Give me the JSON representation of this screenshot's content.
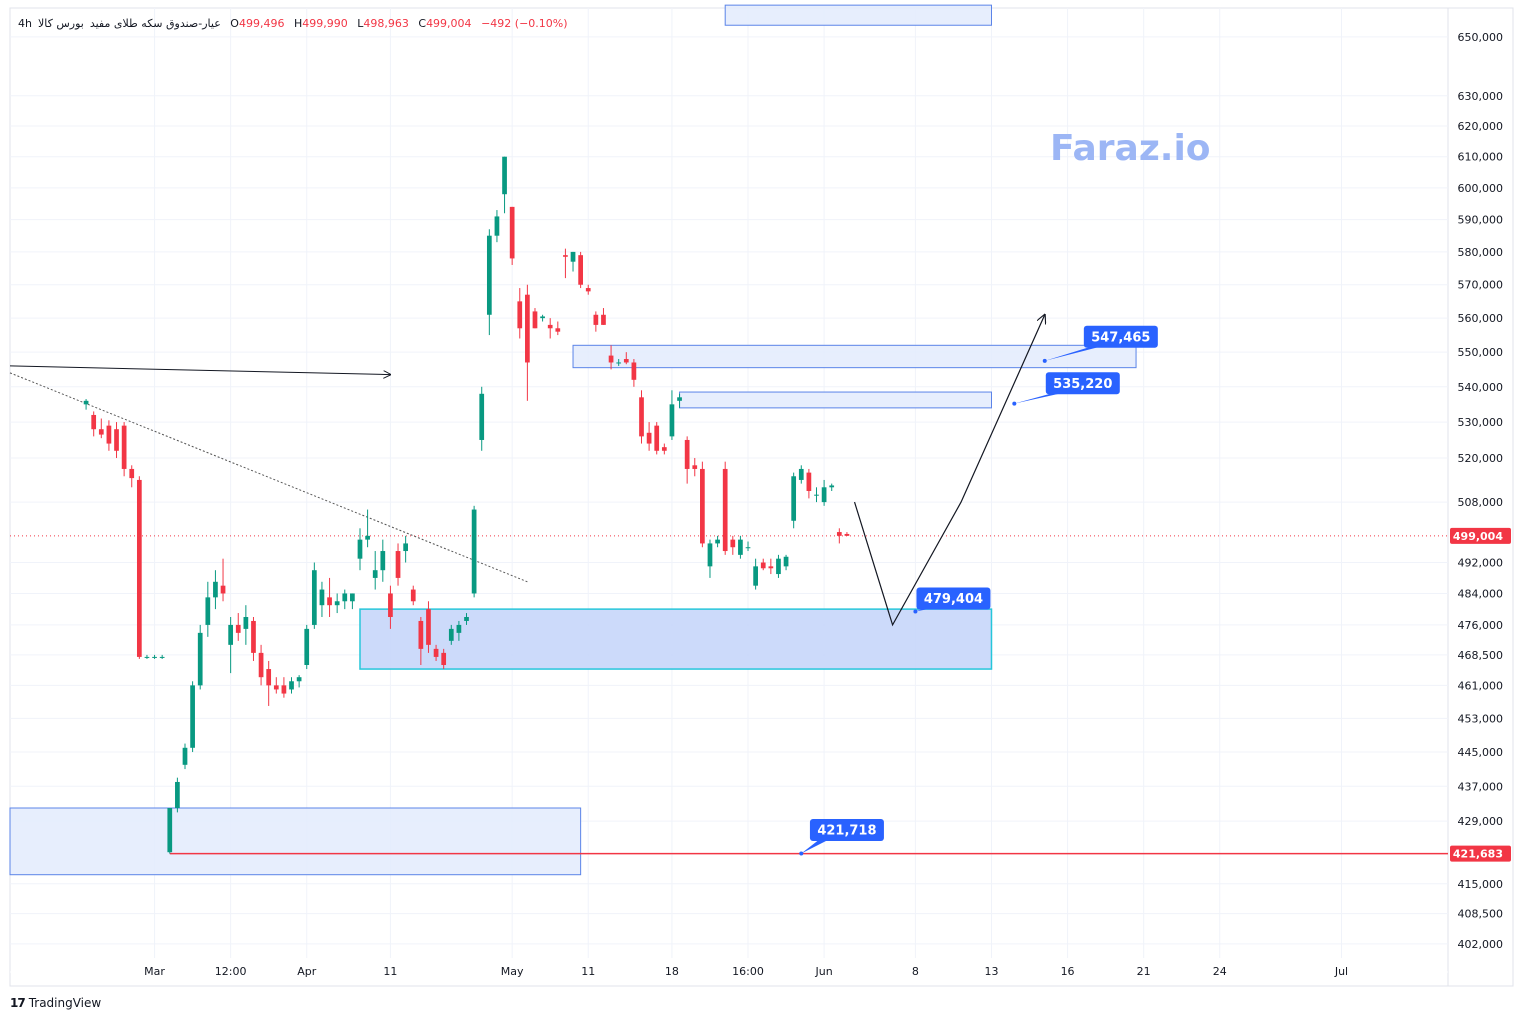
{
  "legend": {
    "symbol": "عیار-صندوق سکه طلای مفید",
    "interval": "4h",
    "exchange": "بورس کالا",
    "open_label": "O",
    "open": "499,496",
    "high_label": "H",
    "high": "499,990",
    "low_label": "L",
    "low": "498,963",
    "close_label": "C",
    "close": "499,004",
    "change": "−492 (−0.10%)"
  },
  "watermark": "Faraz.io",
  "brand": {
    "name": "TradingView",
    "logo": "17"
  },
  "colors": {
    "up": "#089981",
    "down": "#f23645",
    "zone_fill": "#c9d8fb",
    "zone_stroke": "#2962ff",
    "label": "#2962ff",
    "price_line": "#f23645"
  },
  "chart_data": {
    "type": "candlestick",
    "y_axis": {
      "ticks": [
        650000,
        630000,
        620000,
        610000,
        600000,
        590000,
        580000,
        570000,
        560000,
        550000,
        540000,
        530000,
        520000,
        508000,
        492000,
        484000,
        476000,
        468500,
        461000,
        453000,
        445000,
        437000,
        429000,
        415000,
        408500,
        402000
      ],
      "tick_labels": [
        "650,000",
        "630,000",
        "620,000",
        "610,000",
        "600,000",
        "590,000",
        "580,000",
        "570,000",
        "560,000",
        "550,000",
        "540,000",
        "530,000",
        "520,000",
        "508,000",
        "492,000",
        "484,000",
        "476,000",
        "468,500",
        "461,000",
        "453,000",
        "445,000",
        "437,000",
        "429,000",
        "415,000",
        "408,500",
        "402,000"
      ],
      "scale": "log",
      "range": [
        399000,
        660000
      ]
    },
    "x_axis": {
      "labels": [
        "Mar",
        "12:00",
        "Apr",
        "11",
        "May",
        "11",
        "18",
        "16:00",
        "Jun",
        "8",
        "13",
        "16",
        "21",
        "24",
        "Jul"
      ],
      "label_candle_index": [
        9,
        19,
        29,
        40,
        56,
        66,
        77,
        87,
        97,
        109,
        119,
        129,
        139,
        149,
        165
      ],
      "range_candle_index": [
        -10,
        179
      ]
    },
    "last_price": {
      "value": 499004,
      "label": "499,004"
    },
    "support_line": {
      "value": 421683,
      "label": "421,683",
      "from_index": 11
    },
    "candles": [
      {
        "i": 0,
        "o": 535000,
        "h": 536500,
        "l": 533500,
        "c": 536000
      },
      {
        "i": 1,
        "o": 532000,
        "h": 533000,
        "l": 526000,
        "c": 528000
      },
      {
        "i": 2,
        "o": 528000,
        "h": 531000,
        "l": 525500,
        "c": 526500
      },
      {
        "i": 3,
        "o": 529000,
        "h": 530500,
        "l": 522000,
        "c": 524000
      },
      {
        "i": 4,
        "o": 528000,
        "h": 530000,
        "l": 520000,
        "c": 522000
      },
      {
        "i": 5,
        "o": 529000,
        "h": 530000,
        "l": 515000,
        "c": 517000
      },
      {
        "i": 6,
        "o": 517000,
        "h": 518000,
        "l": 512000,
        "c": 514500
      },
      {
        "i": 7,
        "o": 514000,
        "h": 515000,
        "l": 467500,
        "c": 468000
      },
      {
        "i": 8,
        "o": 468000,
        "h": 468500,
        "l": 467500,
        "c": 468000
      },
      {
        "i": 9,
        "o": 468000,
        "h": 468500,
        "l": 467500,
        "c": 468000
      },
      {
        "i": 10,
        "o": 468000,
        "h": 468500,
        "l": 467500,
        "c": 468000
      },
      {
        "i": 11,
        "o": 422000,
        "h": 432000,
        "l": 421683,
        "c": 432000
      },
      {
        "i": 12,
        "o": 432000,
        "h": 439000,
        "l": 431000,
        "c": 438000
      },
      {
        "i": 13,
        "o": 442000,
        "h": 447000,
        "l": 441000,
        "c": 446000
      },
      {
        "i": 14,
        "o": 446000,
        "h": 462000,
        "l": 445000,
        "c": 461000
      },
      {
        "i": 15,
        "o": 461000,
        "h": 476000,
        "l": 460000,
        "c": 474000
      },
      {
        "i": 16,
        "o": 476000,
        "h": 487000,
        "l": 473000,
        "c": 483000
      },
      {
        "i": 17,
        "o": 483000,
        "h": 490000,
        "l": 480000,
        "c": 487000
      },
      {
        "i": 18,
        "o": 486000,
        "h": 493000,
        "l": 482000,
        "c": 484000
      },
      {
        "i": 19,
        "o": 471000,
        "h": 478000,
        "l": 464000,
        "c": 476000
      },
      {
        "i": 20,
        "o": 476000,
        "h": 479000,
        "l": 472000,
        "c": 474000
      },
      {
        "i": 21,
        "o": 475000,
        "h": 481000,
        "l": 471000,
        "c": 478000
      },
      {
        "i": 22,
        "o": 477000,
        "h": 478000,
        "l": 467000,
        "c": 469000
      },
      {
        "i": 23,
        "o": 469000,
        "h": 471000,
        "l": 461000,
        "c": 463000
      },
      {
        "i": 24,
        "o": 465000,
        "h": 467000,
        "l": 456000,
        "c": 461000
      },
      {
        "i": 25,
        "o": 461000,
        "h": 463000,
        "l": 459000,
        "c": 460000
      },
      {
        "i": 26,
        "o": 461000,
        "h": 463000,
        "l": 458000,
        "c": 459000
      },
      {
        "i": 27,
        "o": 460000,
        "h": 463000,
        "l": 459000,
        "c": 462000
      },
      {
        "i": 28,
        "o": 462000,
        "h": 463500,
        "l": 460500,
        "c": 463000
      },
      {
        "i": 29,
        "o": 466000,
        "h": 476000,
        "l": 465000,
        "c": 475000
      },
      {
        "i": 30,
        "o": 476000,
        "h": 492000,
        "l": 475000,
        "c": 490000
      },
      {
        "i": 31,
        "o": 481000,
        "h": 487000,
        "l": 478000,
        "c": 485000
      },
      {
        "i": 32,
        "o": 483000,
        "h": 488000,
        "l": 478000,
        "c": 481000
      },
      {
        "i": 33,
        "o": 481000,
        "h": 484000,
        "l": 479000,
        "c": 482000
      },
      {
        "i": 34,
        "o": 482000,
        "h": 485000,
        "l": 480000,
        "c": 484000
      },
      {
        "i": 35,
        "o": 482000,
        "h": 484000,
        "l": 480000,
        "c": 484000
      },
      {
        "i": 36,
        "o": 493000,
        "h": 501000,
        "l": 490000,
        "c": 498000
      },
      {
        "i": 37,
        "o": 498000,
        "h": 506000,
        "l": 496000,
        "c": 499000
      },
      {
        "i": 38,
        "o": 488000,
        "h": 495000,
        "l": 485000,
        "c": 490000
      },
      {
        "i": 39,
        "o": 490000,
        "h": 498000,
        "l": 487000,
        "c": 495000
      },
      {
        "i": 40,
        "o": 484000,
        "h": 486000,
        "l": 475000,
        "c": 478000
      },
      {
        "i": 41,
        "o": 495000,
        "h": 497000,
        "l": 486000,
        "c": 488000
      },
      {
        "i": 42,
        "o": 495000,
        "h": 499000,
        "l": 492000,
        "c": 497000
      },
      {
        "i": 43,
        "o": 485000,
        "h": 486000,
        "l": 481000,
        "c": 482000
      },
      {
        "i": 44,
        "o": 477000,
        "h": 478000,
        "l": 466000,
        "c": 470000
      },
      {
        "i": 45,
        "o": 480000,
        "h": 482000,
        "l": 469000,
        "c": 471000
      },
      {
        "i": 46,
        "o": 470000,
        "h": 471000,
        "l": 467000,
        "c": 468000
      },
      {
        "i": 47,
        "o": 469000,
        "h": 470000,
        "l": 465000,
        "c": 466000
      },
      {
        "i": 48,
        "o": 472000,
        "h": 476000,
        "l": 471000,
        "c": 475000
      },
      {
        "i": 49,
        "o": 474000,
        "h": 477000,
        "l": 472000,
        "c": 476000
      },
      {
        "i": 50,
        "o": 477000,
        "h": 479000,
        "l": 476000,
        "c": 478000
      },
      {
        "i": 51,
        "o": 484000,
        "h": 507000,
        "l": 483000,
        "c": 506000
      },
      {
        "i": 52,
        "o": 525000,
        "h": 540000,
        "l": 522000,
        "c": 538000
      },
      {
        "i": 53,
        "o": 561000,
        "h": 587000,
        "l": 555000,
        "c": 585000
      },
      {
        "i": 54,
        "o": 585000,
        "h": 593000,
        "l": 583000,
        "c": 591000
      },
      {
        "i": 55,
        "o": 598000,
        "h": 610000,
        "l": 592000,
        "c": 610000
      },
      {
        "i": 56,
        "o": 594000,
        "h": 594000,
        "l": 576000,
        "c": 578000
      },
      {
        "i": 57,
        "o": 565000,
        "h": 569000,
        "l": 554000,
        "c": 557000
      },
      {
        "i": 58,
        "o": 567000,
        "h": 570000,
        "l": 536000,
        "c": 547000
      },
      {
        "i": 59,
        "o": 562000,
        "h": 563000,
        "l": 557000,
        "c": 557000
      },
      {
        "i": 60,
        "o": 560000,
        "h": 561000,
        "l": 559000,
        "c": 560500
      },
      {
        "i": 61,
        "o": 558000,
        "h": 560000,
        "l": 554000,
        "c": 557000
      },
      {
        "i": 62,
        "o": 557000,
        "h": 559000,
        "l": 555000,
        "c": 556000
      },
      {
        "i": 63,
        "o": 579000,
        "h": 581000,
        "l": 572000,
        "c": 578500
      },
      {
        "i": 64,
        "o": 577000,
        "h": 580000,
        "l": 574000,
        "c": 580000
      },
      {
        "i": 65,
        "o": 579000,
        "h": 580000,
        "l": 569000,
        "c": 570000
      },
      {
        "i": 66,
        "o": 569000,
        "h": 570000,
        "l": 567000,
        "c": 568000
      },
      {
        "i": 67,
        "o": 561000,
        "h": 562000,
        "l": 556000,
        "c": 558000
      },
      {
        "i": 68,
        "o": 561000,
        "h": 563000,
        "l": 558000,
        "c": 558000
      },
      {
        "i": 69,
        "o": 549000,
        "h": 552000,
        "l": 545000,
        "c": 547000
      },
      {
        "i": 70,
        "o": 547000,
        "h": 548000,
        "l": 546000,
        "c": 547000
      },
      {
        "i": 71,
        "o": 548000,
        "h": 550000,
        "l": 546500,
        "c": 547000
      },
      {
        "i": 72,
        "o": 547000,
        "h": 548000,
        "l": 540000,
        "c": 542000
      },
      {
        "i": 73,
        "o": 537000,
        "h": 539000,
        "l": 524000,
        "c": 526000
      },
      {
        "i": 74,
        "o": 527000,
        "h": 530000,
        "l": 522000,
        "c": 524000
      },
      {
        "i": 75,
        "o": 529000,
        "h": 530000,
        "l": 521000,
        "c": 522000
      },
      {
        "i": 76,
        "o": 523000,
        "h": 524000,
        "l": 521000,
        "c": 522000
      },
      {
        "i": 77,
        "o": 526000,
        "h": 539000,
        "l": 525000,
        "c": 535000
      },
      {
        "i": 78,
        "o": 536000,
        "h": 538000,
        "l": 534000,
        "c": 537000
      },
      {
        "i": 79,
        "o": 525000,
        "h": 526000,
        "l": 513000,
        "c": 517000
      },
      {
        "i": 80,
        "o": 518000,
        "h": 520000,
        "l": 515000,
        "c": 517000
      },
      {
        "i": 81,
        "o": 517000,
        "h": 519000,
        "l": 496000,
        "c": 497000
      },
      {
        "i": 82,
        "o": 491000,
        "h": 498000,
        "l": 488000,
        "c": 497000
      },
      {
        "i": 83,
        "o": 497000,
        "h": 499000,
        "l": 496000,
        "c": 498000
      },
      {
        "i": 84,
        "o": 517000,
        "h": 519000,
        "l": 494000,
        "c": 495000
      },
      {
        "i": 85,
        "o": 498000,
        "h": 499000,
        "l": 494000,
        "c": 496000
      },
      {
        "i": 86,
        "o": 494000,
        "h": 499000,
        "l": 493000,
        "c": 498000
      },
      {
        "i": 87,
        "o": 496000,
        "h": 497500,
        "l": 495000,
        "c": 496000
      },
      {
        "i": 88,
        "o": 486000,
        "h": 493000,
        "l": 485000,
        "c": 491000
      },
      {
        "i": 89,
        "o": 492000,
        "h": 493000,
        "l": 490000,
        "c": 490500
      },
      {
        "i": 90,
        "o": 491000,
        "h": 493000,
        "l": 489000,
        "c": 490500
      },
      {
        "i": 91,
        "o": 489000,
        "h": 494000,
        "l": 488000,
        "c": 493000
      },
      {
        "i": 92,
        "o": 491000,
        "h": 494000,
        "l": 490000,
        "c": 493500
      },
      {
        "i": 93,
        "o": 503000,
        "h": 516000,
        "l": 501000,
        "c": 515000
      },
      {
        "i": 94,
        "o": 514000,
        "h": 518000,
        "l": 513000,
        "c": 517000
      },
      {
        "i": 95,
        "o": 516000,
        "h": 517000,
        "l": 509000,
        "c": 511000
      },
      {
        "i": 96,
        "o": 510000,
        "h": 512000,
        "l": 508000,
        "c": 510000
      },
      {
        "i": 97,
        "o": 508000,
        "h": 514000,
        "l": 507000,
        "c": 512000
      },
      {
        "i": 98,
        "o": 512000,
        "h": 513000,
        "l": 511000,
        "c": 512500
      },
      {
        "i": 99,
        "o": 500000,
        "h": 501000,
        "l": 497000,
        "c": 499000
      },
      {
        "i": 100,
        "o": 499496,
        "h": 499990,
        "l": 498963,
        "c": 499004
      }
    ],
    "zones": [
      {
        "from_index": -10,
        "to_index": 65,
        "top": 432000,
        "bottom": 417000,
        "style": "light"
      },
      {
        "from_index": 36,
        "to_index": 119,
        "top": 480000,
        "bottom": 465000,
        "style": "strong"
      },
      {
        "from_index": 64,
        "to_index": 138,
        "top": 552000,
        "bottom": 545500,
        "style": "light"
      },
      {
        "from_index": 78,
        "to_index": 119,
        "top": 538500,
        "bottom": 534000,
        "style": "light"
      },
      {
        "from_index": 84,
        "to_index": 119,
        "top": 661000,
        "bottom": 654000,
        "style": "light"
      }
    ],
    "projection_path": [
      {
        "i": 101,
        "v": 508000
      },
      {
        "i": 106,
        "v": 476000
      },
      {
        "i": 115,
        "v": 508000
      },
      {
        "i": 126,
        "v": 561000
      }
    ],
    "horizontal_arrow": {
      "from_index": -10,
      "from_value": 546000,
      "to_index": 40,
      "to_value": 543500
    },
    "trendline": {
      "from_index": -10,
      "from_value": 544000,
      "to_index": 58,
      "to_value": 487000
    },
    "annotations": [
      {
        "text": "547,465",
        "value": 547465,
        "at_index": 126,
        "box_index": 136,
        "box_value": 554500
      },
      {
        "text": "535,220",
        "value": 535220,
        "at_index": 122,
        "box_index": 131,
        "box_value": 541000
      },
      {
        "text": "479,404",
        "value": 479404,
        "at_index": 109,
        "box_index": 114,
        "box_value": 482700
      },
      {
        "text": "421,718",
        "value": 421718,
        "at_index": 94,
        "box_index": 100,
        "box_value": 427000
      }
    ]
  }
}
